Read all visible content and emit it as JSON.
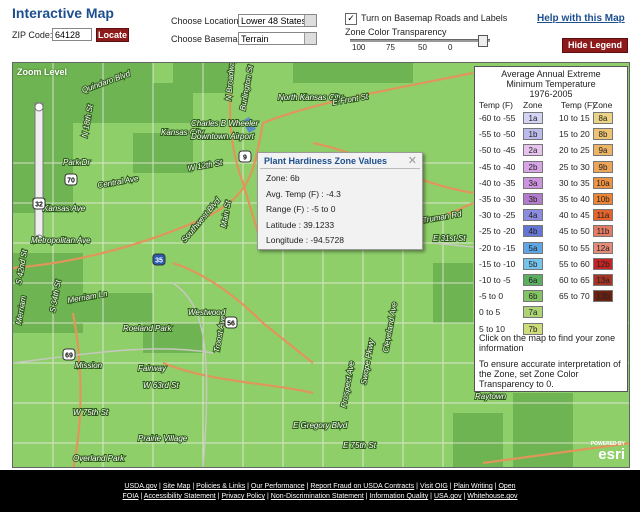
{
  "header": {
    "title": "Interactive Map",
    "zip_label": "ZIP Code:",
    "zip_value": "64128",
    "locate_button": "Locate",
    "location_label": "Choose Location:",
    "location_value": "Lower 48 States",
    "basemap_label": "Choose Basemap:",
    "basemap_value": "Terrain",
    "roads_checkbox": "Turn on Basemap Roads and Labels",
    "transparency_label": "Zone Color Transparency",
    "transparency_ticks": [
      100,
      75,
      50,
      0
    ],
    "help_link": "Help with this Map",
    "hide_legend_button": "Hide Legend"
  },
  "map": {
    "zoom_label": "Zoom Level",
    "labels": [
      "Quindaro Blvd",
      "N 18th St",
      "Park Dr",
      "Central Ave",
      "Kansas Ave",
      "Metropolitan Ave",
      "S 42nd St",
      "S 34th St",
      "Merriam Ln",
      "Merriam",
      "Mission",
      "Fairway",
      "Roeland Park",
      "Westwood",
      "W 63rd St",
      "W 75th St",
      "Overland Park",
      "Prairie Village",
      "Kansas City",
      "Charles B Wheeler",
      "Downtown Airport",
      "North Kansas City",
      "E Front St",
      "W 12th St",
      "Southwest Blvd",
      "Main St",
      "Troost Ave",
      "Prospect Ave",
      "Swope Pkwy",
      "Cleveland Ave",
      "E Gregory Blvd",
      "E 75th St",
      "Raytown",
      "Truman Rd",
      "E 31st St",
      "N Broadway",
      "Burlington St"
    ],
    "shields": [
      "9",
      "32",
      "70",
      "35",
      "56",
      "69"
    ]
  },
  "popup": {
    "title": "Plant Hardiness Zone Values",
    "lines": [
      "Zone: 6b",
      "Avg. Temp (F) : -4.3",
      "Range (F) : -5 to 0",
      "Latitude : 39.1233",
      "Longitude : -94.5728"
    ]
  },
  "legend": {
    "title": [
      "Average Annual Extreme",
      "Minimum Temperature",
      "1976-2005"
    ],
    "headers": [
      "Temp (F)",
      "Zone",
      "Temp (F)",
      "Zone"
    ],
    "rows_left": [
      {
        "temp": "-60 to -55",
        "zone": "1a",
        "color": "#d4d4f4"
      },
      {
        "temp": "-55 to -50",
        "zone": "1b",
        "color": "#bcbcec"
      },
      {
        "temp": "-50 to -45",
        "zone": "2a",
        "color": "#e6c4ef"
      },
      {
        "temp": "-45 to -40",
        "zone": "2b",
        "color": "#d8a6e6"
      },
      {
        "temp": "-40 to -35",
        "zone": "3a",
        "color": "#cc94de"
      },
      {
        "temp": "-35 to -30",
        "zone": "3b",
        "color": "#b47ccc"
      },
      {
        "temp": "-30 to -25",
        "zone": "4a",
        "color": "#8c8ce0"
      },
      {
        "temp": "-25 to -20",
        "zone": "4b",
        "color": "#6476d4"
      },
      {
        "temp": "-20 to -15",
        "zone": "5a",
        "color": "#5ea6e4"
      },
      {
        "temp": "-15 to -10",
        "zone": "5b",
        "color": "#76c4ec"
      },
      {
        "temp": "-10 to -5",
        "zone": "6a",
        "color": "#5cae62"
      },
      {
        "temp": "-5 to 0",
        "zone": "6b",
        "color": "#84c464"
      },
      {
        "temp": "0 to 5",
        "zone": "7a",
        "color": "#acd474"
      },
      {
        "temp": "5 to 10",
        "zone": "7b",
        "color": "#cedc7c"
      }
    ],
    "rows_right": [
      {
        "temp": "10 to 15",
        "zone": "8a",
        "color": "#ecd486"
      },
      {
        "temp": "15 to 20",
        "zone": "8b",
        "color": "#ecc474"
      },
      {
        "temp": "20 to 25",
        "zone": "9a",
        "color": "#ecb464"
      },
      {
        "temp": "25 to 30",
        "zone": "9b",
        "color": "#eca458"
      },
      {
        "temp": "30 to 35",
        "zone": "10a",
        "color": "#ec9444"
      },
      {
        "temp": "35 to 40",
        "zone": "10b",
        "color": "#ec8434"
      },
      {
        "temp": "40 to 45",
        "zone": "11a",
        "color": "#e4642c"
      },
      {
        "temp": "45 to 50",
        "zone": "11b",
        "color": "#e47c64"
      },
      {
        "temp": "50 to 55",
        "zone": "12a",
        "color": "#e48c78"
      },
      {
        "temp": "55 to 60",
        "zone": "12b",
        "color": "#c42424"
      },
      {
        "temp": "60 to 65",
        "zone": "13a",
        "color": "#a43424"
      },
      {
        "temp": "65 to 70",
        "zone": "13b",
        "color": "#6c2010"
      }
    ],
    "notes": [
      "Click on the map to find your zone information",
      "To ensure accurate interpretation of the Zone, set Zone Color Transparency to 0."
    ]
  },
  "logo": {
    "powered_by": "POWERED BY",
    "name": "esri"
  },
  "footer": {
    "links": [
      "USDA.gov",
      "Site Map",
      "Policies & Links",
      "Our Performance",
      "Report Fraud on USDA Contracts",
      "Visit OIG",
      "Plain Writing",
      "Open",
      "FOIA",
      "Accessibility Statement",
      "Privacy Policy",
      "Non-Discrimination Statement",
      "Information Quality",
      "USA.gov",
      "Whitehouse.gov"
    ]
  }
}
